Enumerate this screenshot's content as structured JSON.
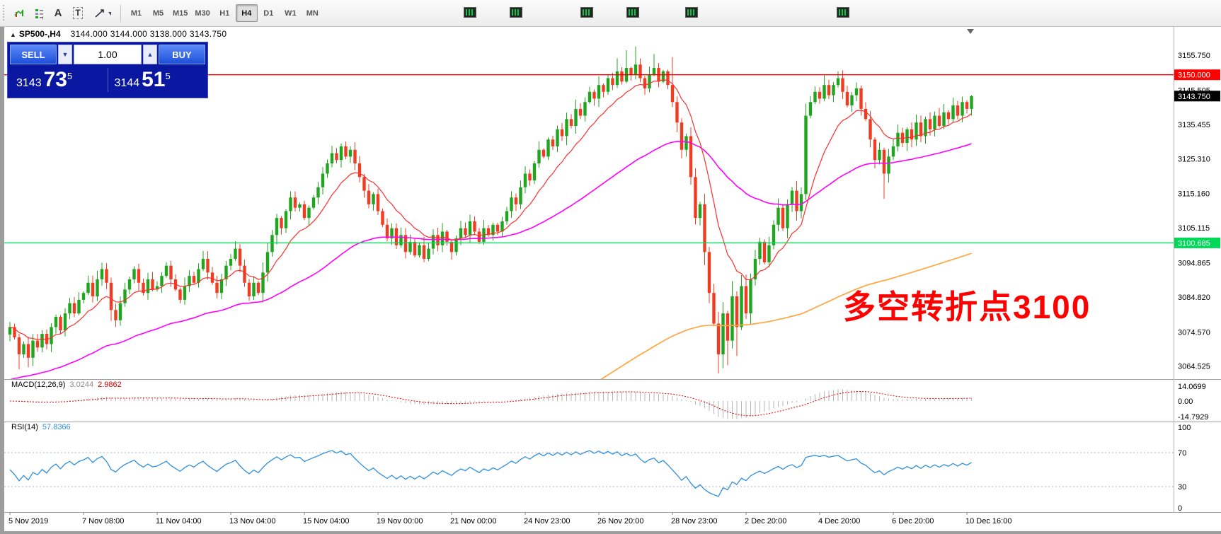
{
  "colors": {
    "up": "#1fa51f",
    "down": "#ee3d23",
    "ma_fast": "#ff2d2d",
    "ma_mid": "#ff00ff",
    "ma_slow": "#ffa640",
    "resistance": "#ff0000",
    "support": "#00d957",
    "bid_badge": "#000000",
    "macd_hist": "#b6b6b6",
    "macd_signal": "#e00000",
    "rsi_line": "#2f8fde",
    "annotation": "#ff0000"
  },
  "toolbar": {
    "timeframes": [
      "M1",
      "M5",
      "M15",
      "M30",
      "H1",
      "H4",
      "D1",
      "W1",
      "MN"
    ],
    "active_timeframe": "H4",
    "text_tool_label": "A",
    "label_tool_label": "T"
  },
  "chart": {
    "symbol_period": "SP500-,H4",
    "ohlc_text": "3144.000 3144.000 3138.000 3143.750"
  },
  "trade_panel": {
    "sell_label": "SELL",
    "buy_label": "BUY",
    "volume": "1.00",
    "bid_head": "3143",
    "bid_pips": "73",
    "bid_sup": "5",
    "ask_head": "3144",
    "ask_pips": "51",
    "ask_sup": "5"
  },
  "levels": {
    "resistance": {
      "label": "3150.000",
      "price": 3150.0
    },
    "support": {
      "label": "3100.685",
      "price": 3100.685
    },
    "bid": {
      "label": "3143.750",
      "price": 3143.75
    }
  },
  "annotation": {
    "text": "多空转折点3100",
    "color": "#ff0000"
  },
  "price_axis": {
    "ticks": [
      {
        "label": "3155.750",
        "value": 3155.75
      },
      {
        "label": "3145.505",
        "value": 3145.505
      },
      {
        "label": "3135.455",
        "value": 3135.455
      },
      {
        "label": "3125.310",
        "value": 3125.31
      },
      {
        "label": "3115.160",
        "value": 3115.16
      },
      {
        "label": "3105.115",
        "value": 3105.115
      },
      {
        "label": "3094.865",
        "value": 3094.865
      },
      {
        "label": "3084.820",
        "value": 3084.82
      },
      {
        "label": "3074.570",
        "value": 3074.57
      },
      {
        "label": "3064.525",
        "value": 3064.525
      }
    ]
  },
  "macd": {
    "label": "MACD(12,26,9)",
    "value_main": "3.0244",
    "value_signal": "2.9862",
    "axis": [
      {
        "label": "14.0699",
        "value": 14.0699
      },
      {
        "label": "0.00",
        "value": 0
      },
      {
        "label": "-14.7929",
        "value": -14.7929
      }
    ]
  },
  "rsi": {
    "label": "RSI(14)",
    "value": "57.8366",
    "axis": [
      {
        "label": "100",
        "value": 100
      },
      {
        "label": "70",
        "value": 70
      },
      {
        "label": "30",
        "value": 30
      },
      {
        "label": "0",
        "value": 0
      }
    ],
    "levels": [
      70,
      30
    ]
  },
  "time_axis": {
    "labels": [
      "5 Nov 2019",
      "7 Nov 08:00",
      "11 Nov 04:00",
      "13 Nov 04:00",
      "15 Nov 04:00",
      "19 Nov 00:00",
      "21 Nov 00:00",
      "24 Nov 23:00",
      "26 Nov 20:00",
      "28 Nov 23:00",
      "2 Dec 20:00",
      "4 Dec 20:00",
      "6 Dec 20:00",
      "10 Dec 16:00"
    ]
  },
  "chart_data": {
    "type": "candlestick",
    "symbol": "SP500-",
    "timeframe": "H4",
    "ohlc_header": {
      "open": 3144.0,
      "high": 3144.0,
      "low": 3138.0,
      "close": 3143.75
    },
    "y_range": [
      3060,
      3164
    ],
    "x_tick_step": 16,
    "closes": [
      3076,
      3073,
      3068,
      3071,
      3067,
      3072,
      3070,
      3074,
      3071,
      3076,
      3079,
      3075,
      3080,
      3083,
      3080,
      3084,
      3086,
      3089,
      3085,
      3090,
      3093,
      3089,
      3081,
      3078,
      3083,
      3087,
      3090,
      3093,
      3089,
      3086,
      3090,
      3087,
      3088,
      3091,
      3094,
      3090,
      3087,
      3084,
      3088,
      3091,
      3089,
      3093,
      3096,
      3092,
      3089,
      3086,
      3090,
      3094,
      3096,
      3099,
      3094,
      3089,
      3085,
      3089,
      3086,
      3092,
      3098,
      3103,
      3108,
      3105,
      3110,
      3114,
      3111,
      3112,
      3108,
      3111,
      3114,
      3117,
      3121,
      3124,
      3127,
      3125,
      3129,
      3126,
      3128,
      3124,
      3120,
      3116,
      3112,
      3115,
      3110,
      3106,
      3102,
      3105,
      3100,
      3103,
      3098,
      3101,
      3097,
      3100,
      3096,
      3099,
      3103,
      3100,
      3104,
      3101,
      3098,
      3102,
      3105,
      3103,
      3107,
      3104,
      3101,
      3105,
      3103,
      3106,
      3104,
      3107,
      3110,
      3114,
      3112,
      3117,
      3121,
      3119,
      3124,
      3128,
      3126,
      3131,
      3129,
      3134,
      3132,
      3137,
      3135,
      3140,
      3138,
      3142,
      3145,
      3143,
      3147,
      3145,
      3149,
      3147,
      3151,
      3148,
      3152,
      3150,
      3153,
      3149,
      3146,
      3150,
      3152,
      3148,
      3151,
      3147,
      3142,
      3136,
      3128,
      3132,
      3120,
      3108,
      3112,
      3098,
      3086,
      3077,
      3068,
      3080,
      3072,
      3085,
      3076,
      3088,
      3080,
      3090,
      3096,
      3101,
      3095,
      3100,
      3106,
      3111,
      3105,
      3112,
      3116,
      3110,
      3115,
      3138,
      3142,
      3145,
      3143,
      3147,
      3144,
      3147,
      3149,
      3145,
      3141,
      3144,
      3146,
      3140,
      3137,
      3131,
      3125,
      3128,
      3121,
      3126,
      3129,
      3133,
      3130,
      3134,
      3131,
      3136,
      3132,
      3137,
      3134,
      3138,
      3135,
      3139,
      3137,
      3141,
      3138,
      3142,
      3140,
      3143.75
    ],
    "wick_highs": {
      "132": 3154.8,
      "134": 3157.2,
      "136": 3158.3,
      "140": 3156.1,
      "144": 3155.2,
      "177": 3149.8,
      "209": 3144.0
    },
    "wick_lows": {
      "2": 3063.6,
      "4": 3064.2,
      "154": 3062.4,
      "156": 3064.8,
      "158": 3067.5,
      "190": 3113.6,
      "209": 3138.0
    },
    "ma": {
      "fast": {
        "name": "EMA fast (red)",
        "period": 12
      },
      "mid": {
        "name": "EMA mid (magenta)",
        "period": 60,
        "seed": 3060
      },
      "slow": {
        "name": "EMA slow (orange)",
        "period": 200,
        "seed": 3056,
        "start_index": 124
      }
    }
  }
}
